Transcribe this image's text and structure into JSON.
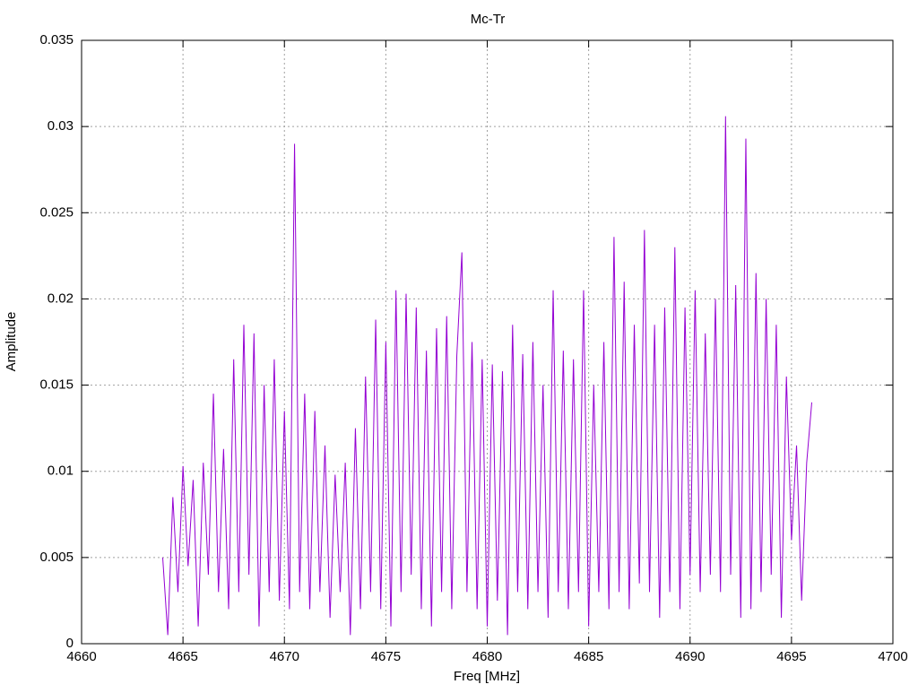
{
  "chart_data": {
    "type": "line",
    "title": "Mc-Tr",
    "x_label": "Freq [MHz]",
    "y_label": "Amplitude",
    "x": [
      4664.0,
      4664.25,
      4664.5,
      4664.75,
      4665.0,
      4665.25,
      4665.5,
      4665.75,
      4666.0,
      4666.25,
      4666.5,
      4666.75,
      4667.0,
      4667.25,
      4667.5,
      4667.75,
      4668.0,
      4668.25,
      4668.5,
      4668.75,
      4669.0,
      4669.25,
      4669.5,
      4669.75,
      4670.0,
      4670.25,
      4670.5,
      4670.75,
      4671.0,
      4671.25,
      4671.5,
      4671.75,
      4672.0,
      4672.25,
      4672.5,
      4672.75,
      4673.0,
      4673.25,
      4673.5,
      4673.75,
      4674.0,
      4674.25,
      4674.5,
      4674.75,
      4675.0,
      4675.25,
      4675.5,
      4675.75,
      4676.0,
      4676.25,
      4676.5,
      4676.75,
      4677.0,
      4677.25,
      4677.5,
      4677.75,
      4678.0,
      4678.25,
      4678.5,
      4678.75,
      4679.0,
      4679.25,
      4679.5,
      4679.75,
      4680.0,
      4680.25,
      4680.5,
      4680.75,
      4681.0,
      4681.25,
      4681.5,
      4681.75,
      4682.0,
      4682.25,
      4682.5,
      4682.75,
      4683.0,
      4683.25,
      4683.5,
      4683.75,
      4684.0,
      4684.25,
      4684.5,
      4684.75,
      4685.0,
      4685.25,
      4685.5,
      4685.75,
      4686.0,
      4686.25,
      4686.5,
      4686.75,
      4687.0,
      4687.25,
      4687.5,
      4687.75,
      4688.0,
      4688.25,
      4688.5,
      4688.75,
      4689.0,
      4689.25,
      4689.5,
      4689.75,
      4690.0,
      4690.25,
      4690.5,
      4690.75,
      4691.0,
      4691.25,
      4691.5,
      4691.75,
      4692.0,
      4692.25,
      4692.5,
      4692.75,
      4693.0,
      4693.25,
      4693.5,
      4693.75,
      4694.0,
      4694.25,
      4694.5,
      4694.75,
      4695.0,
      4695.25,
      4695.5,
      4695.75,
      4696.0
    ],
    "series": [
      {
        "name": "Mc-Tr",
        "color": "#9400d3",
        "values": [
          0.005,
          0.0005,
          0.0085,
          0.003,
          0.0103,
          0.0045,
          0.0095,
          0.001,
          0.0105,
          0.004,
          0.0145,
          0.003,
          0.0113,
          0.002,
          0.0165,
          0.003,
          0.0185,
          0.004,
          0.018,
          0.001,
          0.015,
          0.003,
          0.0165,
          0.0025,
          0.0135,
          0.002,
          0.029,
          0.003,
          0.0145,
          0.002,
          0.0135,
          0.003,
          0.0115,
          0.0015,
          0.0098,
          0.003,
          0.0105,
          0.0005,
          0.0125,
          0.002,
          0.0155,
          0.003,
          0.0188,
          0.002,
          0.0175,
          0.001,
          0.0205,
          0.003,
          0.0203,
          0.004,
          0.0195,
          0.002,
          0.017,
          0.001,
          0.0183,
          0.003,
          0.019,
          0.002,
          0.0167,
          0.0227,
          0.003,
          0.0175,
          0.002,
          0.0165,
          0.001,
          0.0162,
          0.0025,
          0.0158,
          0.0005,
          0.0185,
          0.003,
          0.0168,
          0.002,
          0.0175,
          0.003,
          0.015,
          0.0015,
          0.0205,
          0.003,
          0.017,
          0.002,
          0.0165,
          0.003,
          0.0205,
          0.001,
          0.015,
          0.003,
          0.0175,
          0.002,
          0.0236,
          0.003,
          0.021,
          0.002,
          0.0185,
          0.0035,
          0.024,
          0.003,
          0.0185,
          0.0015,
          0.0195,
          0.003,
          0.023,
          0.002,
          0.0195,
          0.004,
          0.0205,
          0.003,
          0.018,
          0.004,
          0.02,
          0.003,
          0.0306,
          0.004,
          0.0208,
          0.0015,
          0.0293,
          0.002,
          0.0215,
          0.003,
          0.02,
          0.004,
          0.0185,
          0.0015,
          0.0155,
          0.006,
          0.0115,
          0.0025,
          0.0105,
          0.014
        ]
      }
    ],
    "xlim": [
      4660,
      4700
    ],
    "xticks": [
      4660,
      4665,
      4670,
      4675,
      4680,
      4685,
      4690,
      4695,
      4700
    ],
    "ylim": [
      0,
      0.035
    ],
    "yticks": [
      0,
      0.005,
      0.01,
      0.015,
      0.02,
      0.025,
      0.03,
      0.035
    ],
    "grid": true
  }
}
